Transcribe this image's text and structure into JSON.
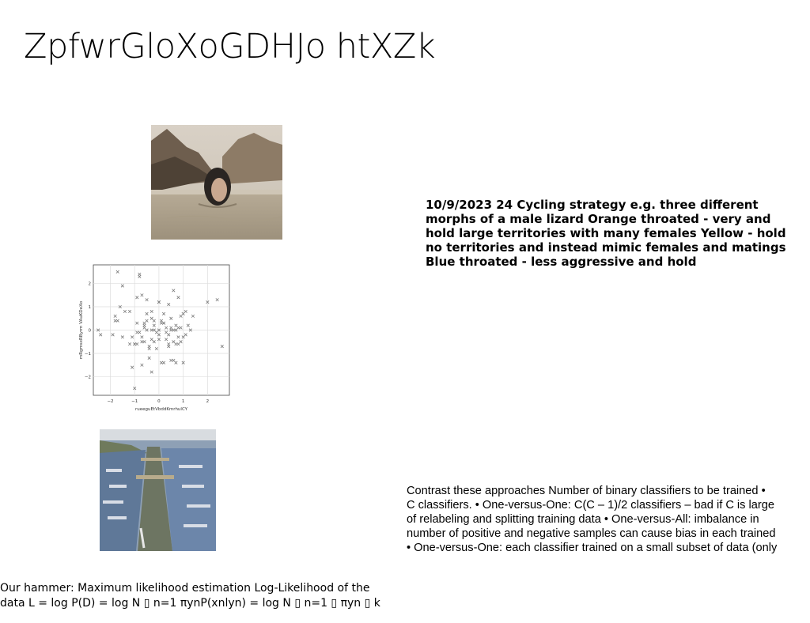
{
  "slide": {
    "title": "ZpfwrGloXoGDHJo htXZk",
    "bold_text": "10/9/2023 24 Cycling strategy e.g. three different morphs of a male lizard Orange throated - very and hold large territories with many females Yellow - hold no territories and instead mimic females and matings Blue throated - less aggressive and hold",
    "plain_text": "Contrast these approaches Number of binary classifiers to be trained •\nC classifiers. • One-versus-One: C(C – 1)/2 classifiers – bad if C is large\nof relabeling and splitting training data • One-versus-All: imbalance in\nnumber of positive and negative samples can cause bias in each trained\n• One-versus-One: each classifier trained on a small subset of data (only",
    "bottom_text": "Our hammer: Maximum likelihood estimation Log-Likelihood of the\ndata L = log P(D) = log N ▯ n=1 πynP(xnlyn) = log N ▯ n=1 ▯ πyn ▯ k"
  },
  "chart_data": {
    "type": "scatter",
    "xlabel": "rueeguEtVbddKmrhulCY",
    "ylabel": "mRgmsxRByrm VAuKDeXo",
    "xlim": [
      -2.7,
      2.9
    ],
    "ylim": [
      -2.8,
      2.8
    ],
    "xticks": [
      -2,
      -1,
      0,
      1,
      2
    ],
    "yticks": [
      -2,
      -1,
      0,
      1,
      2
    ],
    "grid": true,
    "marker": "x",
    "color": "#7a7a7a",
    "x": [
      -1.7,
      -1.5,
      -1.2,
      -1.1,
      -0.8,
      -0.7,
      -0.6,
      -0.5,
      -0.4,
      -0.3,
      -0.2,
      -0.1,
      0.0,
      0.1,
      0.2,
      0.3,
      0.4,
      0.5,
      0.6,
      0.7,
      0.8,
      0.9,
      1.0,
      1.1,
      -2.5,
      -2.4,
      -1.9,
      -1.8,
      -1.6,
      -1.4,
      -1.0,
      -0.9,
      -0.7,
      -0.6,
      -0.5,
      -0.4,
      -0.3,
      -0.2,
      -0.1,
      0.0,
      0.1,
      0.2,
      0.3,
      0.4,
      0.5,
      0.6,
      0.7,
      0.8,
      0.9,
      1.0,
      1.2,
      -1.8,
      -1.2,
      -0.9,
      -0.8,
      -0.5,
      -0.3,
      0.0,
      0.2,
      0.5,
      0.7,
      0.9,
      1.4,
      2.0,
      2.4,
      -1.7,
      -1.0,
      -0.8,
      -0.7,
      -0.5,
      -0.2,
      0.0,
      0.3,
      0.4,
      0.6,
      0.8,
      1.1,
      1.3,
      2.6,
      -1.5,
      -0.9,
      -0.6,
      -0.3,
      0.1,
      0.4,
      0.7,
      1.0,
      -1.1,
      -0.7,
      -0.4,
      0.0,
      0.5,
      0.8,
      -0.9,
      -0.3,
      0.2,
      -0.2,
      0.6,
      -0.6,
      -1.0
    ],
    "y": [
      2.5,
      1.9,
      0.8,
      -0.3,
      2.3,
      1.5,
      -0.5,
      0.4,
      -1.2,
      0.8,
      0.2,
      -0.1,
      1.2,
      0.3,
      0.7,
      -0.4,
      1.1,
      0.0,
      1.7,
      0.2,
      -0.6,
      0.6,
      -0.3,
      0.8,
      0.0,
      -0.2,
      -0.2,
      0.6,
      1.0,
      0.8,
      -0.6,
      0.3,
      -0.5,
      0.1,
      0.0,
      -0.7,
      0.5,
      0.4,
      -0.8,
      0.0,
      0.4,
      0.3,
      0.1,
      -0.2,
      0.5,
      0.0,
      0.0,
      -0.3,
      0.1,
      0.7,
      0.2,
      0.4,
      -0.6,
      1.4,
      -0.1,
      1.3,
      0.0,
      -0.4,
      0.3,
      0.1,
      -0.6,
      -0.5,
      0.6,
      1.2,
      1.3,
      0.4,
      -0.6,
      2.4,
      -0.3,
      0.7,
      -0.5,
      1.2,
      -0.1,
      -0.7,
      -0.5,
      1.4,
      -0.2,
      0.0,
      -0.7,
      -0.3,
      -0.6,
      0.2,
      -0.4,
      -1.4,
      -0.6,
      -1.4,
      -1.4,
      -1.6,
      -1.5,
      -0.8,
      -0.2,
      -1.3,
      0.1,
      -0.1,
      -1.8,
      -1.4,
      0.0,
      -1.3,
      0.3,
      -2.5
    ]
  }
}
